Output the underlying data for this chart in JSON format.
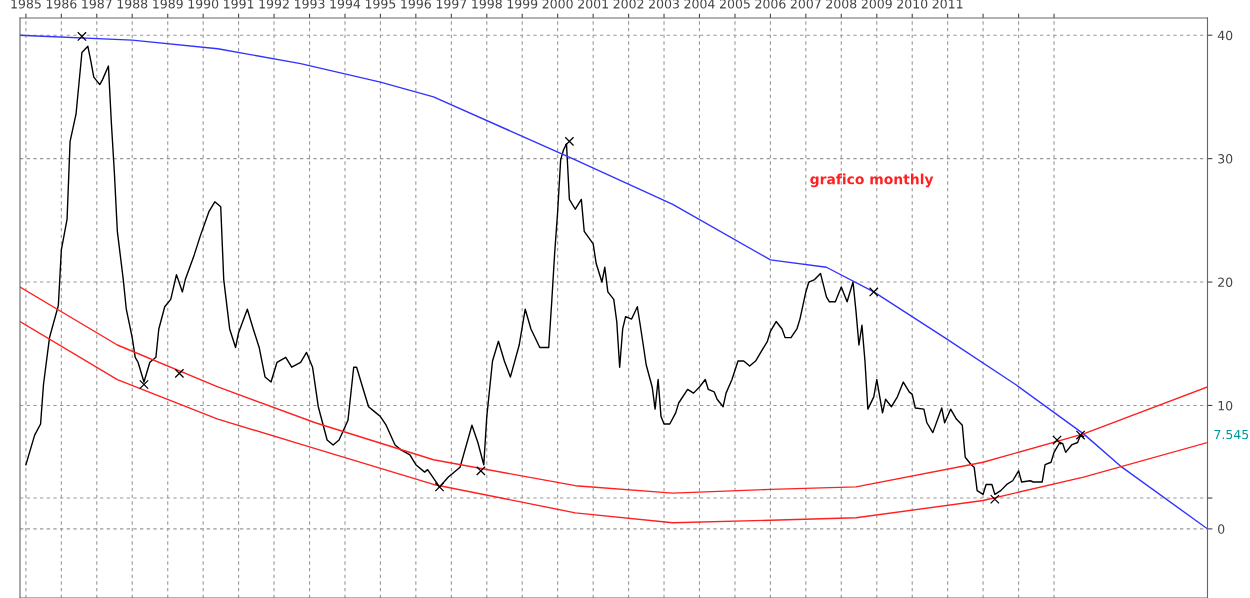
{
  "chart_data": {
    "type": "line",
    "annotations": [
      "grafico monthly",
      "7.545"
    ],
    "xlim": [
      "1984-11",
      "2018-05"
    ],
    "xticks": [
      "1985",
      "1986",
      "1987",
      "1988",
      "1989",
      "1990",
      "1991",
      "1992",
      "1993",
      "1994",
      "1995",
      "1996",
      "1997",
      "1998",
      "1999",
      "2000",
      "2001",
      "2002",
      "2003",
      "2004",
      "2005",
      "2006",
      "2007",
      "2008",
      "2009",
      "2010",
      "2011",
      {
        "value": "2012",
        "label": null
      },
      {
        "value": "2013",
        "label": null
      },
      {
        "value": "2014",
        "label": null
      }
    ],
    "ylim": [
      -5.6,
      41.4
    ],
    "yticks": [
      0,
      {
        "value": 2.5,
        "label": null
      },
      10,
      20,
      30,
      40
    ],
    "grid": true,
    "series": [
      {
        "color": "#000000",
        "x": [
          "1985-01",
          "1985-04",
          "1985-06",
          "1985-07",
          "1985-09",
          "1985-12",
          "1986-01",
          "1986-03",
          "1986-04",
          "1986-06",
          "1986-08",
          "1986-10",
          "1986-11",
          "1986-12",
          "1987-02",
          "1987-03",
          "1987-05",
          "1987-06",
          "1987-07",
          "1987-08",
          "1987-10",
          "1987-11",
          "1988-01",
          "1988-02",
          "1988-03",
          "1988-05",
          "1988-07",
          "1988-09",
          "1988-10",
          "1988-12",
          "1989-02",
          "1989-04",
          "1989-06",
          "1989-07",
          "1989-10",
          "1989-12",
          "1990-03",
          "1990-05",
          "1990-07",
          "1990-08",
          "1990-10",
          "1990-12",
          "1991-01",
          "1991-04",
          "1991-06",
          "1991-08",
          "1991-10",
          "1991-12",
          "1992-02",
          "1992-05",
          "1992-07",
          "1992-10",
          "1992-12",
          "1993-02",
          "1993-04",
          "1993-07",
          "1993-09",
          "1993-11",
          "1994-02",
          "1994-04",
          "1994-05",
          "1994-07",
          "1994-09",
          "1994-11",
          "1995-01",
          "1995-03",
          "1995-06",
          "1995-08",
          "1995-11",
          "1996-01",
          "1996-04",
          "1996-05",
          "1996-09",
          "1996-12",
          "1997-04",
          "1997-08",
          "1997-10",
          "1997-12",
          "1998-01",
          "1998-03",
          "1998-05",
          "1998-07",
          "1998-09",
          "1998-12",
          "1999-02",
          "1999-04",
          "1999-07",
          "1999-10",
          "1999-11",
          "1999-12",
          "2000-01",
          "2000-02",
          "2000-03",
          "2000-04",
          "2000-05",
          "2000-07",
          "2000-09",
          "2000-10",
          "2001-01",
          "2001-02",
          "2001-04",
          "2001-05",
          "2001-06",
          "2001-08",
          "2001-09",
          "2001-10",
          "2001-11",
          "2001-12",
          "2002-02",
          "2002-04",
          "2002-05",
          "2002-06",
          "2002-07",
          "2002-09",
          "2002-10",
          "2002-11",
          "2002-12",
          "2003-01",
          "2003-03",
          "2003-05",
          "2003-06",
          "2003-09",
          "2003-11",
          "2004-01",
          "2004-03",
          "2004-04",
          "2004-06",
          "2004-07",
          "2004-09",
          "2004-10",
          "2004-12",
          "2005-02",
          "2005-04",
          "2005-06",
          "2005-08",
          "2005-10",
          "2005-12",
          "2006-01",
          "2006-03",
          "2006-05",
          "2006-06",
          "2006-08",
          "2006-10",
          "2006-11",
          "2007-01",
          "2007-02",
          "2007-04",
          "2007-06",
          "2007-08",
          "2007-09",
          "2007-11",
          "2008-01",
          "2008-03",
          "2008-05",
          "2008-06",
          "2008-07",
          "2008-08",
          "2008-09",
          "2008-10",
          "2008-12",
          "2009-01",
          "2009-03",
          "2009-04",
          "2009-06",
          "2009-08",
          "2009-10",
          "2009-12",
          "2010-01",
          "2010-02",
          "2010-05",
          "2010-06",
          "2010-08",
          "2010-11",
          "2010-12",
          "2011-02",
          "2011-04",
          "2011-06",
          "2011-07",
          "2011-09",
          "2011-10",
          "2011-11",
          "2012-01",
          "2012-02",
          "2012-04",
          "2012-05",
          "2012-07",
          "2012-09",
          "2012-11",
          "2013-01",
          "2013-02",
          "2013-05",
          "2013-06",
          "2013-09",
          "2013-10",
          "2013-12",
          "2014-01",
          "2014-03",
          "2014-04",
          "2014-05",
          "2014-07",
          "2014-09",
          "2014-10",
          "2014-11"
        ],
        "values": [
          5.2,
          7.6,
          8.5,
          11.7,
          15.5,
          18.1,
          22.6,
          25.1,
          31.4,
          33.6,
          38.6,
          39.1,
          37.9,
          36.6,
          36.0,
          36.4,
          37.5,
          32.8,
          28.9,
          24.1,
          20.2,
          17.8,
          15.5,
          13.9,
          13.5,
          11.9,
          13.5,
          13.9,
          16.2,
          18.0,
          18.6,
          20.6,
          19.2,
          20.2,
          22.2,
          23.7,
          25.7,
          26.5,
          26.1,
          20.2,
          16.2,
          14.7,
          15.9,
          17.8,
          16.2,
          14.7,
          12.3,
          11.9,
          13.5,
          13.9,
          13.1,
          13.5,
          14.3,
          13.1,
          9.9,
          7.2,
          6.8,
          7.2,
          8.8,
          13.1,
          13.1,
          11.5,
          9.9,
          9.5,
          9.1,
          8.4,
          6.8,
          6.4,
          6.0,
          5.2,
          4.6,
          4.8,
          3.4,
          4.2,
          5.0,
          8.4,
          7.0,
          5.2,
          9.1,
          13.6,
          15.2,
          13.6,
          12.3,
          14.9,
          17.8,
          16.2,
          14.7,
          14.7,
          18.4,
          22.3,
          25.7,
          29.9,
          30.7,
          31.2,
          26.7,
          25.9,
          26.7,
          24.1,
          23.1,
          21.5,
          20.0,
          21.2,
          19.2,
          18.6,
          16.8,
          13.1,
          16.2,
          17.2,
          17.0,
          18.0,
          16.5,
          14.9,
          13.3,
          11.5,
          9.7,
          12.1,
          9.1,
          8.5,
          8.5,
          9.4,
          10.2,
          11.3,
          11.0,
          11.5,
          12.1,
          11.3,
          11.1,
          10.5,
          9.9,
          11.0,
          12.1,
          13.6,
          13.6,
          13.2,
          13.6,
          14.4,
          15.2,
          16.0,
          16.8,
          16.2,
          15.5,
          15.5,
          16.2,
          17.0,
          19.2,
          20.0,
          20.2,
          20.7,
          18.8,
          18.4,
          18.4,
          19.6,
          18.4,
          20.0,
          17.6,
          14.9,
          16.5,
          13.6,
          9.7,
          10.7,
          12.1,
          9.4,
          10.5,
          9.9,
          10.7,
          11.9,
          11.1,
          10.9,
          9.8,
          9.7,
          8.6,
          7.8,
          9.8,
          8.6,
          9.7,
          8.9,
          8.4,
          5.8,
          5.2,
          5.0,
          3.1,
          2.8,
          3.6,
          3.6,
          2.8,
          3.1,
          3.6,
          3.9,
          4.7,
          3.8,
          3.9,
          3.8,
          3.8,
          5.2,
          5.4,
          6.2,
          7.0,
          6.9,
          6.2,
          6.8,
          7.0,
          7.6,
          7.5
        ]
      },
      {
        "color": "#3333ff",
        "x": [
          "1984-11",
          "1988-01",
          "1990-06",
          "1992-10",
          "1995-01",
          "1996-07",
          "2000-07",
          "2003-04",
          "2006-01",
          "2007-08",
          "2008-12",
          "2010-12",
          "2012-12",
          "2014-11",
          "2015-12",
          "2018-05"
        ],
        "values": [
          40.0,
          39.6,
          38.9,
          37.7,
          36.2,
          35.0,
          29.9,
          26.3,
          21.8,
          21.2,
          19.2,
          15.5,
          11.7,
          7.7,
          5.0,
          0
        ]
      },
      {
        "color": "#ff2020",
        "x": [
          "1984-11",
          "1987-08",
          "1990-06",
          "1993-03",
          "1996-07",
          "2000-07",
          "2003-04",
          "2006-01",
          "2008-06",
          "2012-01",
          "2014-11",
          "2018-05"
        ],
        "values": [
          19.6,
          14.9,
          11.5,
          8.6,
          5.6,
          3.5,
          2.9,
          3.2,
          3.4,
          5.4,
          7.7,
          11.5
        ]
      },
      {
        "color": "#ff2020",
        "x": [
          "1984-11",
          "1987-08",
          "1990-06",
          "1993-03",
          "1996-07",
          "2000-07",
          "2003-04",
          "2006-01",
          "2008-06",
          "2012-01",
          "2014-11",
          "2018-05"
        ],
        "values": [
          16.8,
          12.1,
          8.9,
          6.5,
          3.6,
          1.3,
          0.5,
          0.7,
          0.9,
          2.3,
          4.2,
          7.0
        ]
      },
      {
        "type": "scatter",
        "marker": "cross",
        "color": "#000000",
        "x": [
          "1986-08",
          "1988-05",
          "1989-05",
          "1996-09",
          "1997-11",
          "2000-05",
          "2008-12",
          "2012-05",
          "2014-02",
          "2014-10"
        ],
        "values": [
          39.9,
          11.7,
          12.6,
          3.4,
          4.7,
          31.4,
          19.2,
          2.4,
          7.2,
          7.6
        ]
      }
    ]
  }
}
